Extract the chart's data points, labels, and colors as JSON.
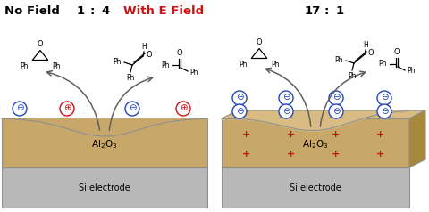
{
  "title_left": "No Field",
  "ratio_left_1": "1",
  "ratio_left_colon": ":",
  "ratio_left_4": "4",
  "title_right": "With E Field",
  "ratio_right_17": "17",
  "ratio_right_colon": ":",
  "ratio_right_1": "1",
  "al2o3_color": "#C8A86A",
  "al2o3_top_color": "#D9BC84",
  "al2o3_side_color": "#A8883A",
  "si_color": "#B8B8B8",
  "si_edge_color": "#909090",
  "bg_color": "#FFFFFF",
  "neg_color": "#2244BB",
  "pos_color": "#CC1111",
  "arrow_color": "#606060",
  "line_color": "#404040"
}
